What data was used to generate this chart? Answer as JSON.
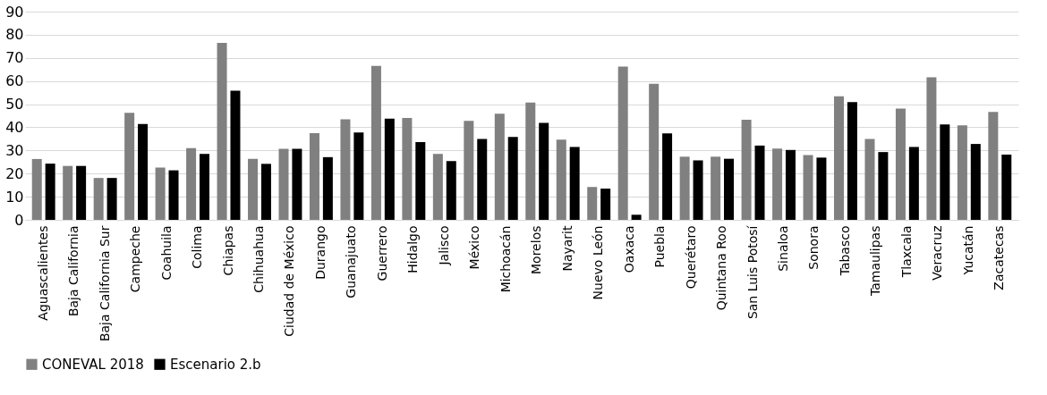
{
  "chart_data": {
    "type": "bar",
    "categories": [
      "Aguascalientes",
      "Baja California",
      "Baja California Sur",
      "Campeche",
      "Coahuila",
      "Colima",
      "Chiapas",
      "Chihuahua",
      "Ciudad de México",
      "Durango",
      "Guanajuato",
      "Guerrero",
      "Hidalgo",
      "Jalisco",
      "México",
      "Michoacán",
      "Morelos",
      "Nayarit",
      "Nuevo León",
      "Oaxaca",
      "Puebla",
      "Querétaro",
      "Quintana Roo",
      "San Luis Potosí",
      "Sinaloa",
      "Sonora",
      "Tabasco",
      "Tamaulipas",
      "Tlaxcala",
      "Veracruz",
      "Yucatán",
      "Zacatecas"
    ],
    "series": [
      {
        "name": "CONEVAL 2018",
        "color": "#808080",
        "values": [
          26.3,
          23.3,
          18.1,
          46.3,
          22.6,
          31.0,
          76.5,
          26.4,
          30.7,
          37.5,
          43.5,
          66.5,
          44.0,
          28.5,
          42.8,
          45.9,
          50.7,
          34.7,
          14.2,
          66.2,
          58.8,
          27.3,
          27.3,
          43.3,
          30.8,
          28.0,
          53.4,
          35.0,
          48.1,
          61.6,
          40.8,
          46.6
        ]
      },
      {
        "name": "Escenario 2.b",
        "color": "#000000",
        "values": [
          24.3,
          23.3,
          18.1,
          41.4,
          21.4,
          28.5,
          55.8,
          24.2,
          30.7,
          27.1,
          37.8,
          43.7,
          33.6,
          25.4,
          35.0,
          35.8,
          41.9,
          31.5,
          13.5,
          2.2,
          37.4,
          25.7,
          26.4,
          32.1,
          30.2,
          26.9,
          50.9,
          29.3,
          31.5,
          41.2,
          32.8,
          28.2
        ]
      }
    ],
    "ylim": [
      0,
      90
    ],
    "yticks": [
      0,
      10,
      20,
      30,
      40,
      50,
      60,
      70,
      80,
      90
    ],
    "grid": "y",
    "legend": "bottom"
  }
}
